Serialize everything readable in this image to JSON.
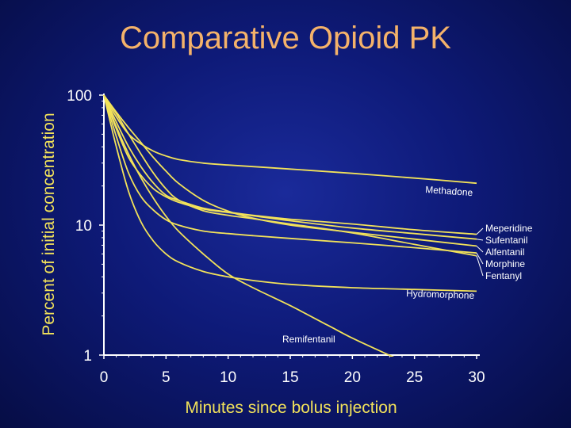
{
  "title": "Comparative Opioid PK",
  "chart_data": {
    "type": "line",
    "title": "Comparative Opioid PK",
    "xlabel": "Minutes since bolus injection",
    "ylabel": "Percent of initial concentration",
    "x_ticks": [
      "0",
      "5",
      "10",
      "15",
      "20",
      "25",
      "30"
    ],
    "y_ticks": [
      "1",
      "10",
      "100"
    ],
    "xlim": [
      0,
      30
    ],
    "ylim": [
      1,
      100
    ],
    "y_scale": "log",
    "series": [
      {
        "name": "Methadone",
        "x": [
          0,
          1,
          2,
          3,
          4,
          5,
          6,
          8,
          10,
          15,
          20,
          25,
          30
        ],
        "y": [
          100,
          68,
          50,
          42,
          37,
          34,
          32,
          30,
          29,
          27,
          25,
          23,
          21
        ]
      },
      {
        "name": "Meperidine",
        "x": [
          0,
          1,
          2,
          3,
          4,
          5,
          6,
          8,
          10,
          12,
          15,
          20,
          25,
          30
        ],
        "y": [
          100,
          62,
          40,
          28,
          21,
          17,
          15.5,
          13.5,
          12.6,
          11.9,
          11.1,
          10.2,
          9.2,
          8.5
        ]
      },
      {
        "name": "Sufentanil",
        "x": [
          0,
          1,
          2,
          3,
          4,
          5,
          6,
          8,
          10,
          12,
          15,
          20,
          25,
          30
        ],
        "y": [
          100,
          55,
          33,
          24,
          19,
          16.5,
          15,
          13.3,
          12.5,
          11.8,
          10.8,
          9.5,
          8.6,
          7.8
        ]
      },
      {
        "name": "Alfentanil",
        "x": [
          0,
          1,
          2,
          3,
          4,
          5,
          6,
          8,
          10,
          12,
          15,
          20,
          25,
          30
        ],
        "y": [
          100,
          74,
          56,
          43,
          33,
          26,
          21,
          15.5,
          12.8,
          11.3,
          10,
          8.8,
          7.8,
          6.9
        ]
      },
      {
        "name": "Morphine",
        "x": [
          0,
          1,
          2,
          3,
          4,
          5,
          6,
          8,
          10,
          12,
          15,
          20,
          25,
          30
        ],
        "y": [
          100,
          48,
          25,
          16.5,
          13,
          11,
          10,
          9,
          8.6,
          8.3,
          7.9,
          7.3,
          6.7,
          6.1
        ]
      },
      {
        "name": "Fentanyl",
        "x": [
          0,
          1,
          2,
          3,
          4,
          5,
          6,
          8,
          10,
          12,
          15,
          20,
          25,
          30
        ],
        "y": [
          100,
          72,
          50,
          35,
          25,
          19,
          15.6,
          12.9,
          11.9,
          11.2,
          10.2,
          8.7,
          7.1,
          5.8
        ]
      },
      {
        "name": "Hydromorphone",
        "x": [
          0,
          1,
          2,
          3,
          4,
          5,
          6,
          8,
          10,
          12,
          15,
          20,
          25,
          30
        ],
        "y": [
          100,
          40,
          18,
          10.5,
          7.5,
          6,
          5.2,
          4.4,
          4,
          3.75,
          3.5,
          3.3,
          3.2,
          3.1
        ]
      },
      {
        "name": "Remifentanil",
        "x": [
          0,
          1,
          2,
          3,
          4,
          5,
          6,
          8,
          10,
          12,
          15,
          18,
          20,
          22,
          24
        ],
        "y": [
          100,
          57,
          35,
          23,
          16,
          11.7,
          9,
          6,
          4.2,
          3.3,
          2.4,
          1.7,
          1.35,
          1.1,
          0.9
        ]
      }
    ]
  }
}
